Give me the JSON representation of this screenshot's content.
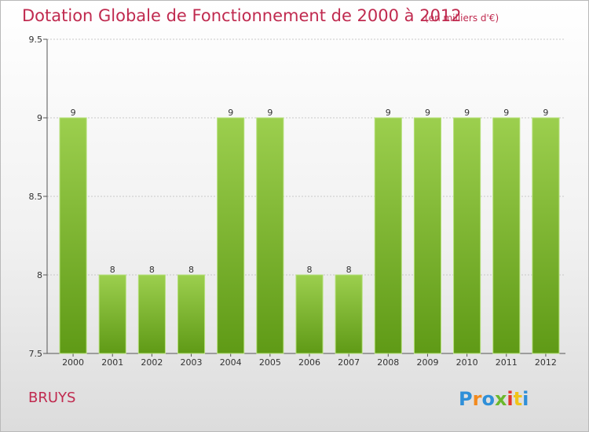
{
  "title": "Dotation Globale de Fonctionnement de 2000 à 2012",
  "unit_note": "(en milliers d'€)",
  "commune": "BRUYS",
  "logo_text": "Proxiti",
  "colors": {
    "bar_top": "#9ccf4e",
    "bar_bottom": "#5f9a16",
    "title": "#c02a4f"
  },
  "chart_data": {
    "type": "bar",
    "title": "Dotation Globale de Fonctionnement de 2000 à 2012",
    "categories": [
      "2000",
      "2001",
      "2002",
      "2003",
      "2004",
      "2005",
      "2006",
      "2007",
      "2008",
      "2009",
      "2010",
      "2011",
      "2012"
    ],
    "values": [
      9,
      8,
      8,
      8,
      9,
      9,
      8,
      8,
      9,
      9,
      9,
      9,
      9
    ],
    "ylim": [
      7.5,
      9.5
    ],
    "yticks": [
      7.5,
      8,
      8.5,
      9,
      9.5
    ],
    "grid": true,
    "data_labels": true
  }
}
